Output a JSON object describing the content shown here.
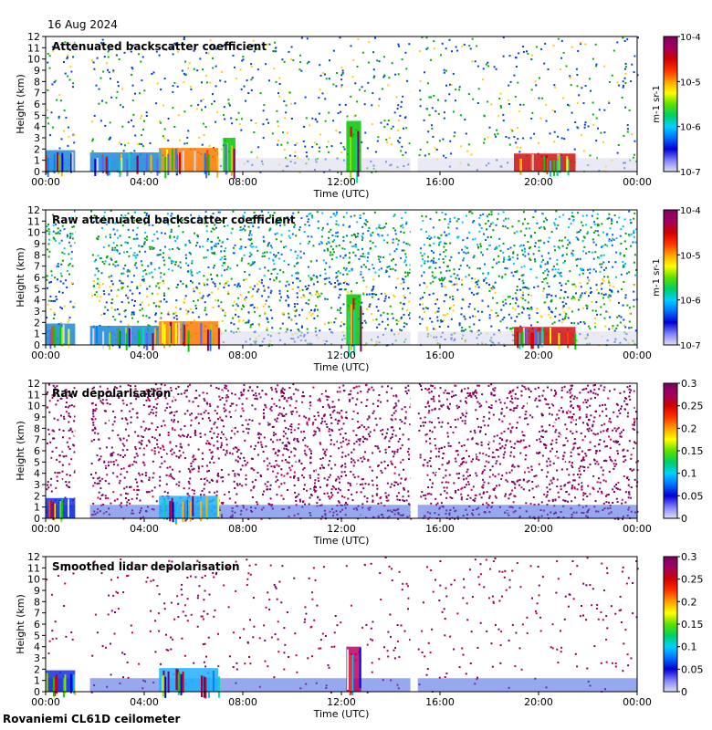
{
  "header": {
    "date": "16 Aug 2024"
  },
  "footer": {
    "site": "Rovaniemi CL61D ceilometer"
  },
  "chart_data": [
    {
      "type": "heatmap",
      "title": "Attenuated backscatter coefficient",
      "xlabel": "Time (UTC)",
      "ylabel": "Height (km)",
      "x_ticks": [
        "00:00",
        "04:00",
        "08:00",
        "12:00",
        "16:00",
        "20:00",
        "00:00"
      ],
      "x_range_hours": [
        0,
        24
      ],
      "y_ticks": [
        0,
        1,
        2,
        3,
        4,
        5,
        6,
        7,
        8,
        9,
        10,
        11,
        12
      ],
      "ylim": [
        0,
        12
      ],
      "colorbar": {
        "scale": "log",
        "ticks": [
          "10-7",
          "10-6",
          "10-5",
          "10-4"
        ],
        "label": "m-1 sr-1"
      },
      "data_gaps_hours": [
        [
          1.2,
          1.8
        ],
        [
          14.8,
          15.1
        ]
      ],
      "layers": [
        {
          "start_h": 0.0,
          "end_h": 1.2,
          "top_km": 1.9,
          "color": "#1a8ad8"
        },
        {
          "start_h": 1.8,
          "end_h": 4.6,
          "top_km": 1.7,
          "color": "#1a8ad8"
        },
        {
          "start_h": 4.6,
          "end_h": 7.0,
          "top_km": 2.1,
          "color": "#ff7a00"
        },
        {
          "start_h": 7.2,
          "end_h": 7.7,
          "top_km": 3.0,
          "color": "#00c800"
        },
        {
          "start_h": 12.2,
          "end_h": 12.8,
          "top_km": 4.5,
          "color": "#00c800"
        },
        {
          "start_h": 19.0,
          "end_h": 21.5,
          "top_km": 1.6,
          "color": "#d01010"
        }
      ]
    },
    {
      "type": "heatmap",
      "title": "Raw attenuated backscatter coefficient",
      "xlabel": "Time (UTC)",
      "ylabel": "Height (km)",
      "x_ticks": [
        "00:00",
        "04:00",
        "08:00",
        "12:00",
        "16:00",
        "20:00",
        "00:00"
      ],
      "x_range_hours": [
        0,
        24
      ],
      "y_ticks": [
        0,
        1,
        2,
        3,
        4,
        5,
        6,
        7,
        8,
        9,
        10,
        11,
        12
      ],
      "ylim": [
        0,
        12
      ],
      "colorbar": {
        "scale": "log",
        "ticks": [
          "10-7",
          "10-6",
          "10-5",
          "10-4"
        ],
        "label": "m-1 sr-1"
      },
      "data_gaps_hours": [
        [
          1.2,
          1.8
        ],
        [
          14.8,
          15.1
        ]
      ],
      "layers": [
        {
          "start_h": 0.0,
          "end_h": 1.2,
          "top_km": 1.9,
          "color": "#1a8ad8"
        },
        {
          "start_h": 1.8,
          "end_h": 4.6,
          "top_km": 1.7,
          "color": "#1a8ad8"
        },
        {
          "start_h": 4.6,
          "end_h": 7.0,
          "top_km": 2.1,
          "color": "#ff7a00"
        },
        {
          "start_h": 12.2,
          "end_h": 12.8,
          "top_km": 4.5,
          "color": "#00c800"
        },
        {
          "start_h": 19.0,
          "end_h": 21.5,
          "top_km": 1.6,
          "color": "#d01010"
        }
      ]
    },
    {
      "type": "heatmap",
      "title": "Raw depolarisation",
      "xlabel": "Time (UTC)",
      "ylabel": "Height (km)",
      "x_ticks": [
        "00:00",
        "04:00",
        "08:00",
        "12:00",
        "16:00",
        "20:00",
        "00:00"
      ],
      "x_range_hours": [
        0,
        24
      ],
      "y_ticks": [
        0,
        1,
        2,
        3,
        4,
        5,
        6,
        7,
        8,
        9,
        10,
        11,
        12
      ],
      "ylim": [
        0,
        12
      ],
      "colorbar": {
        "scale": "linear",
        "ticks": [
          "0",
          "0.05",
          "0.1",
          "0.15",
          "0.2",
          "0.25",
          "0.3"
        ],
        "label": ""
      },
      "data_gaps_hours": [
        [
          1.2,
          1.8
        ],
        [
          14.8,
          15.1
        ]
      ],
      "layers": [
        {
          "start_h": 0.0,
          "end_h": 1.2,
          "top_km": 1.8,
          "color": "#1030e0"
        },
        {
          "start_h": 4.6,
          "end_h": 7.0,
          "top_km": 2.0,
          "color": "#20b0ff"
        }
      ]
    },
    {
      "type": "heatmap",
      "title": "Smoothed lidar depolarisation",
      "xlabel": "Time (UTC)",
      "ylabel": "Height (km)",
      "x_ticks": [
        "00:00",
        "04:00",
        "08:00",
        "12:00",
        "16:00",
        "20:00",
        "00:00"
      ],
      "x_range_hours": [
        0,
        24
      ],
      "y_ticks": [
        0,
        1,
        2,
        3,
        4,
        5,
        6,
        7,
        8,
        9,
        10,
        11,
        12
      ],
      "ylim": [
        0,
        12
      ],
      "colorbar": {
        "scale": "linear",
        "ticks": [
          "0",
          "0.05",
          "0.1",
          "0.15",
          "0.2",
          "0.25",
          "0.3"
        ],
        "label": ""
      },
      "data_gaps_hours": [
        [
          1.2,
          1.8
        ],
        [
          14.8,
          15.1
        ]
      ],
      "layers": [
        {
          "start_h": 0.0,
          "end_h": 1.2,
          "top_km": 1.9,
          "color": "#1030e0"
        },
        {
          "start_h": 4.6,
          "end_h": 7.0,
          "top_km": 2.1,
          "color": "#20b0ff"
        },
        {
          "start_h": 12.2,
          "end_h": 12.8,
          "top_km": 4.0,
          "color": "#c00060"
        }
      ]
    }
  ]
}
